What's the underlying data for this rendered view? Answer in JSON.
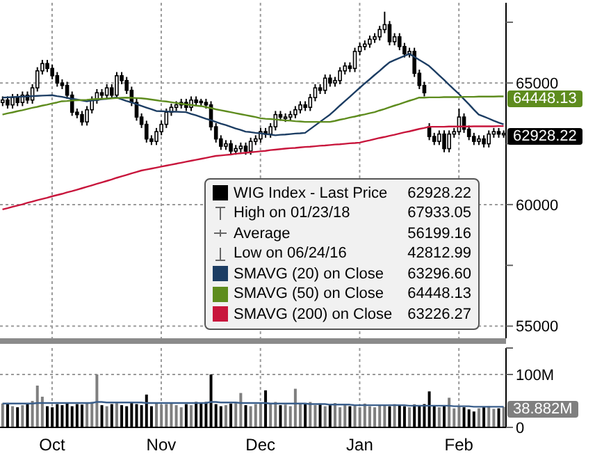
{
  "chart_data": [
    {
      "type": "candlestick",
      "categories": [
        null,
        null,
        null,
        null,
        null,
        null,
        null,
        null,
        null,
        null,
        null,
        null,
        null,
        null,
        null,
        null,
        null,
        null,
        null,
        null,
        null,
        null,
        null,
        null,
        null,
        null,
        null,
        null,
        null,
        null,
        null,
        null,
        null,
        null,
        null,
        null,
        null,
        null,
        null,
        null,
        null,
        null,
        null,
        null,
        null,
        null,
        null,
        null,
        null,
        null,
        null,
        null,
        null,
        null,
        null,
        null,
        null,
        null,
        null,
        null,
        null,
        null,
        null,
        null,
        null,
        null,
        null,
        null,
        null,
        null,
        null,
        null,
        null,
        null,
        null,
        null,
        null,
        null,
        null,
        null,
        null,
        null,
        null,
        null,
        null,
        null,
        null,
        null,
        null,
        null,
        null,
        null,
        null,
        null,
        null,
        null,
        null,
        null,
        null,
        null,
        null,
        null
      ],
      "series": [
        {
          "name": "WIG Index - Last Price",
          "color": "#000000",
          "ohlc": [
            [
              64200,
              64450,
              64050,
              64300
            ],
            [
              64300,
              64450,
              63950,
              64100
            ],
            [
              64100,
              64550,
              63950,
              64400
            ],
            [
              64400,
              64550,
              64050,
              64200
            ],
            [
              64200,
              64650,
              64050,
              64500
            ],
            [
              64500,
              64650,
              64150,
              64300
            ],
            [
              64300,
              64950,
              64150,
              64800
            ],
            [
              64800,
              65650,
              64650,
              65500
            ],
            [
              65500,
              65950,
              65350,
              65800
            ],
            [
              65800,
              65950,
              65450,
              65600
            ],
            [
              65600,
              65750,
              65150,
              65300
            ],
            [
              65300,
              65450,
              64850,
              65000
            ],
            [
              65000,
              65150,
              64750,
              64900
            ],
            [
              64900,
              65050,
              64350,
              64500
            ],
            [
              64500,
              64650,
              63650,
              63800
            ],
            [
              63800,
              63950,
              63550,
              63700
            ],
            [
              63700,
              63850,
              63250,
              63400
            ],
            [
              63400,
              64050,
              63250,
              63900
            ],
            [
              63900,
              64450,
              63750,
              64300
            ],
            [
              64300,
              64750,
              64150,
              64600
            ],
            [
              64600,
              64750,
              64350,
              64500
            ],
            [
              64500,
              64950,
              64350,
              64800
            ],
            [
              64800,
              64950,
              64350,
              64500
            ],
            [
              64500,
              65450,
              64350,
              65300
            ],
            [
              65300,
              65450,
              64950,
              65100
            ],
            [
              65100,
              65250,
              64550,
              64700
            ],
            [
              64700,
              64850,
              64050,
              64200
            ],
            [
              64200,
              64350,
              63450,
              63600
            ],
            [
              63600,
              63750,
              63150,
              63300
            ],
            [
              63300,
              63450,
              62550,
              62700
            ],
            [
              62700,
              62850,
              62450,
              62600
            ],
            [
              62600,
              63150,
              62450,
              63000
            ],
            [
              63000,
              63450,
              62850,
              63300
            ],
            [
              63300,
              63950,
              63150,
              63800
            ],
            [
              63800,
              64150,
              63650,
              64000
            ],
            [
              64000,
              64250,
              63850,
              64100
            ],
            [
              64100,
              64350,
              63950,
              64200
            ],
            [
              64200,
              64350,
              63850,
              64000
            ],
            [
              64000,
              64450,
              63850,
              64300
            ],
            [
              64300,
              64450,
              64050,
              64200
            ],
            [
              64250,
              64350,
              64050,
              64200
            ],
            [
              64200,
              64350,
              63950,
              64100
            ],
            [
              64100,
              64250,
              63050,
              63200
            ],
            [
              63200,
              63350,
              62550,
              62700
            ],
            [
              62700,
              62850,
              62250,
              62400
            ],
            [
              62400,
              62650,
              62250,
              62500
            ],
            [
              62500,
              62650,
              62050,
              62200
            ],
            [
              62200,
              62450,
              62050,
              62300
            ],
            [
              62300,
              62550,
              62150,
              62400
            ],
            [
              62400,
              62550,
              62050,
              62200
            ],
            [
              62200,
              62750,
              62050,
              62600
            ],
            [
              62600,
              62850,
              62450,
              62700
            ],
            [
              62700,
              63150,
              62550,
              63000
            ],
            [
              63000,
              63150,
              62750,
              62900
            ],
            [
              62900,
              63350,
              62750,
              63200
            ],
            [
              63200,
              63850,
              63050,
              63700
            ],
            [
              63700,
              63850,
              63450,
              63600
            ],
            [
              63550,
              63750,
              63400,
              63600
            ],
            [
              63600,
              63850,
              63450,
              63700
            ],
            [
              63700,
              64050,
              63550,
              63900
            ],
            [
              63900,
              64250,
              63750,
              64100
            ],
            [
              64100,
              64250,
              63850,
              64000
            ],
            [
              64000,
              64550,
              63850,
              64400
            ],
            [
              64400,
              64950,
              64250,
              64800
            ],
            [
              64800,
              64950,
              64550,
              64700
            ],
            [
              64700,
              65350,
              64550,
              65200
            ],
            [
              65200,
              65350,
              64850,
              65000
            ],
            [
              65000,
              65250,
              64850,
              65100
            ],
            [
              65100,
              65650,
              64950,
              65500
            ],
            [
              65500,
              65850,
              65350,
              65700
            ],
            [
              65700,
              65850,
              65450,
              65600
            ],
            [
              65600,
              66450,
              65450,
              66300
            ],
            [
              66300,
              66650,
              66150,
              66500
            ],
            [
              66500,
              66750,
              66350,
              66600
            ],
            [
              66600,
              66950,
              66450,
              66800
            ],
            [
              66800,
              67050,
              66650,
              66900
            ],
            [
              66900,
              67350,
              66750,
              67200
            ],
            [
              67200,
              67933.05,
              67050,
              67400
            ],
            [
              67400,
              67550,
              66550,
              66700
            ],
            [
              66700,
              67050,
              66550,
              66900
            ],
            [
              66900,
              67050,
              66350,
              66500
            ],
            [
              66500,
              66650,
              66050,
              66200
            ],
            [
              66200,
              66450,
              66050,
              66300
            ],
            [
              66300,
              66450,
              65250,
              65400
            ],
            [
              65400,
              65550,
              64750,
              64900
            ],
            [
              64900,
              65050,
              64450,
              64600
            ],
            [
              63200,
              63350,
              62650,
              62800
            ],
            [
              62800,
              62950,
              62450,
              62600
            ],
            [
              62600,
              63050,
              62450,
              62900
            ],
            [
              62900,
              63050,
              62150,
              62300
            ],
            [
              62300,
              63050,
              62150,
              62900
            ],
            [
              62900,
              63150,
              62750,
              63000
            ],
            [
              63000,
              63950,
              62850,
              63600
            ],
            [
              63600,
              63750,
              62950,
              63100
            ],
            [
              63100,
              63250,
              62650,
              62800
            ],
            [
              62800,
              62950,
              62450,
              62600
            ],
            [
              62600,
              62850,
              62450,
              62700
            ],
            [
              62700,
              62850,
              62350,
              62500
            ],
            [
              62500,
              63050,
              62350,
              62900
            ],
            [
              62900,
              63150,
              62750,
              63000
            ],
            [
              63000,
              63150,
              62750,
              62900
            ],
            [
              62900,
              63050,
              62750,
              62928.22
            ]
          ]
        },
        {
          "name": "SMAVG (20) on Close",
          "type": "line",
          "color": "#1c3d63",
          "values": [
            64400,
            64410,
            64420,
            64430,
            64440,
            64450,
            64460,
            64470,
            64480,
            64490,
            64500,
            64460,
            64430,
            64390,
            64350,
            64320,
            64280,
            64250,
            64280,
            64300,
            64330,
            64350,
            64380,
            64400,
            64330,
            64260,
            64200,
            64130,
            64060,
            63990,
            63920,
            63850,
            63840,
            63830,
            63820,
            63820,
            63810,
            63800,
            63730,
            63670,
            63600,
            63530,
            63470,
            63400,
            63330,
            63270,
            63200,
            63130,
            63070,
            63000,
            62980,
            62950,
            62930,
            62900,
            62880,
            62850,
            62870,
            62880,
            62900,
            62920,
            62930,
            62950,
            63100,
            63250,
            63400,
            63550,
            63700,
            63880,
            64070,
            64250,
            64430,
            64620,
            64800,
            64980,
            65150,
            65330,
            65500,
            65680,
            65850,
            65940,
            66030,
            66110,
            66200,
            66080,
            65950,
            65830,
            65700,
            65510,
            65320,
            65130,
            64930,
            64740,
            64550,
            64340,
            64130,
            63910,
            63700,
            63620,
            63540,
            63450,
            63370,
            63300
          ]
        },
        {
          "name": "SMAVG (50) on Close",
          "type": "line",
          "color": "#5e8c1e",
          "values": [
            63700,
            63750,
            63790,
            63840,
            63880,
            63930,
            63980,
            64020,
            64070,
            64110,
            64160,
            64200,
            64250,
            64260,
            64280,
            64290,
            64300,
            64310,
            64330,
            64340,
            64350,
            64360,
            64370,
            64380,
            64390,
            64400,
            64390,
            64380,
            64370,
            64350,
            64320,
            64290,
            64260,
            64240,
            64210,
            64180,
            64150,
            64120,
            64100,
            64070,
            64050,
            64010,
            63970,
            63920,
            63880,
            63840,
            63800,
            63760,
            63720,
            63680,
            63640,
            63600,
            63550,
            63530,
            63520,
            63500,
            63480,
            63460,
            63450,
            63430,
            63420,
            63400,
            63400,
            63400,
            63400,
            63400,
            63400,
            63440,
            63490,
            63530,
            63580,
            63620,
            63670,
            63710,
            63760,
            63800,
            63870,
            63930,
            64000,
            64070,
            64130,
            64200,
            64270,
            64330,
            64400,
            64400,
            64410,
            64410,
            64410,
            64420,
            64420,
            64420,
            64420,
            64430,
            64430,
            64430,
            64440,
            64440,
            64440,
            64440,
            64450,
            64450
          ]
        },
        {
          "name": "SMAVG (200) on Close",
          "type": "line",
          "color": "#c8163c",
          "values": [
            59800,
            59850,
            59910,
            59960,
            60010,
            60070,
            60120,
            60180,
            60230,
            60280,
            60340,
            60390,
            60440,
            60500,
            60550,
            60610,
            60670,
            60730,
            60790,
            60850,
            60910,
            60970,
            61030,
            61100,
            61160,
            61220,
            61280,
            61340,
            61400,
            61440,
            61480,
            61520,
            61560,
            61600,
            61640,
            61680,
            61720,
            61760,
            61800,
            61840,
            61880,
            61920,
            61960,
            62000,
            62020,
            62040,
            62060,
            62090,
            62110,
            62130,
            62150,
            62170,
            62190,
            62210,
            62240,
            62260,
            62280,
            62300,
            62320,
            62330,
            62350,
            62370,
            62380,
            62400,
            62420,
            62430,
            62450,
            62470,
            62480,
            62500,
            62520,
            62530,
            62550,
            62600,
            62640,
            62690,
            62740,
            62780,
            62830,
            62870,
            62920,
            62970,
            63010,
            63060,
            63110,
            63150,
            63200,
            63200,
            63200,
            63200,
            63210,
            63210,
            63210,
            63210,
            63210,
            63220,
            63220,
            63220,
            63220,
            63220,
            63230,
            63230
          ]
        }
      ],
      "ylim": [
        54500,
        68300
      ],
      "yticks": [
        55000,
        {
          "value": 57500,
          "label": null
        },
        60000,
        {
          "value": 62500,
          "label": null
        },
        65000,
        {
          "value": 67500,
          "label": null
        }
      ],
      "grid": true,
      "legend": "bottom right",
      "tick_labels": "y",
      "annotations": [
        "62928.22",
        "High on 01/23/18",
        "67933.05",
        "Average",
        "56199.16",
        "Low on 06/24/16",
        "42812.99",
        "63296.60",
        "64448.13",
        "63226.27",
        "64448.13",
        "62928.22"
      ]
    },
    {
      "type": "bar",
      "categories": [
        null,
        null,
        null,
        null,
        null,
        null,
        null,
        null,
        null,
        null,
        "Oct",
        null,
        null,
        null,
        null,
        null,
        null,
        null,
        null,
        null,
        null,
        null,
        null,
        null,
        null,
        null,
        null,
        null,
        null,
        null,
        null,
        null,
        "Nov",
        null,
        null,
        null,
        null,
        null,
        null,
        null,
        null,
        null,
        null,
        null,
        null,
        null,
        null,
        null,
        null,
        null,
        null,
        null,
        "Dec",
        null,
        null,
        null,
        null,
        null,
        null,
        null,
        null,
        null,
        null,
        null,
        null,
        null,
        null,
        null,
        null,
        null,
        null,
        null,
        "Jan",
        null,
        null,
        null,
        null,
        null,
        null,
        null,
        null,
        null,
        null,
        null,
        null,
        null,
        null,
        null,
        null,
        null,
        null,
        null,
        "Feb",
        null,
        null,
        null,
        null,
        null,
        null,
        null,
        null,
        null
      ],
      "series": [
        {
          "values": [
            45,
            44,
            40,
            38,
            42,
            46,
            50,
            79,
            58,
            40,
            38,
            44,
            42,
            46,
            40,
            44,
            43,
            45,
            48,
            100,
            42,
            40,
            44,
            46,
            42,
            40,
            48,
            44,
            42,
            62,
            40,
            45,
            43,
            44,
            46,
            42,
            38,
            44,
            42,
            48,
            45,
            48,
            100,
            44,
            40,
            42,
            45,
            46,
            65,
            42,
            40,
            44,
            46,
            70,
            44,
            48,
            42,
            43,
            40,
            73,
            46,
            44,
            48,
            42,
            45,
            40,
            42,
            46,
            38,
            44,
            40,
            42,
            38,
            45,
            40,
            38,
            43,
            42,
            40,
            44,
            42,
            40,
            38,
            43,
            40,
            44,
            68,
            40,
            38,
            42,
            56,
            36,
            40,
            38,
            34,
            30,
            36,
            38,
            40,
            35,
            36,
            38.9
          ],
          "colors": [
            "#7f7f7f",
            "#000000",
            "#7f7f7f",
            "#000000",
            "#7f7f7f",
            "#000000",
            "#7f7f7f",
            "#7f7f7f",
            "#7f7f7f",
            "#000000",
            "#000000",
            "#000000",
            "#000000",
            "#000000",
            "#000000",
            "#000000",
            "#000000",
            "#7f7f7f",
            "#7f7f7f",
            "#7f7f7f",
            "#000000",
            "#7f7f7f",
            "#000000",
            "#7f7f7f",
            "#000000",
            "#000000",
            "#000000",
            "#000000",
            "#000000",
            "#000000",
            "#000000",
            "#7f7f7f",
            "#7f7f7f",
            "#7f7f7f",
            "#7f7f7f",
            "#7f7f7f",
            "#7f7f7f",
            "#000000",
            "#7f7f7f",
            "#000000",
            "#000000",
            "#000000",
            "#000000",
            "#000000",
            "#000000",
            "#7f7f7f",
            "#000000",
            "#7f7f7f",
            "#7f7f7f",
            "#000000",
            "#7f7f7f",
            "#7f7f7f",
            "#7f7f7f",
            "#000000",
            "#7f7f7f",
            "#7f7f7f",
            "#000000",
            "#7f7f7f",
            "#7f7f7f",
            "#7f7f7f",
            "#7f7f7f",
            "#000000",
            "#7f7f7f",
            "#7f7f7f",
            "#000000",
            "#7f7f7f",
            "#000000",
            "#7f7f7f",
            "#7f7f7f",
            "#7f7f7f",
            "#000000",
            "#7f7f7f",
            "#7f7f7f",
            "#7f7f7f",
            "#7f7f7f",
            "#7f7f7f",
            "#7f7f7f",
            "#7f7f7f",
            "#000000",
            "#7f7f7f",
            "#000000",
            "#000000",
            "#7f7f7f",
            "#000000",
            "#000000",
            "#000000",
            "#000000",
            "#000000",
            "#7f7f7f",
            "#000000",
            "#7f7f7f",
            "#7f7f7f",
            "#7f7f7f",
            "#000000",
            "#000000",
            "#000000",
            "#7f7f7f",
            "#000000",
            "#7f7f7f",
            "#7f7f7f",
            "#000000",
            "#7f7f7f"
          ]
        },
        {
          "type": "line",
          "color": "#3b5f8c",
          "values": [
            45,
            45,
            45,
            45,
            45,
            45,
            45,
            46,
            46,
            46,
            46,
            46,
            46,
            46,
            46,
            46,
            46,
            46,
            46,
            48,
            48,
            47,
            47,
            47,
            47,
            47,
            47,
            47,
            47,
            46,
            46,
            46,
            46,
            46,
            46,
            46,
            46,
            46,
            46,
            46,
            46,
            46,
            48,
            48,
            47,
            47,
            47,
            47,
            46,
            46,
            46,
            46,
            46,
            46,
            45,
            45,
            45,
            45,
            45,
            45,
            45,
            45,
            44,
            44,
            44,
            44,
            43,
            43,
            43,
            43,
            43,
            42,
            42,
            42,
            42,
            42,
            42,
            42,
            42,
            42,
            42,
            42,
            41,
            41,
            41,
            41,
            41,
            41,
            41,
            41,
            41,
            40,
            40,
            40,
            40,
            39,
            39,
            39,
            39,
            39,
            39,
            39
          ]
        }
      ],
      "ylim": [
        0,
        150
      ],
      "yticks": [
        0,
        {
          "value": 100,
          "label": "100M"
        },
        {
          "value": 150,
          "label": null
        }
      ],
      "grid": true,
      "annotations": [
        "38.882M"
      ]
    }
  ]
}
